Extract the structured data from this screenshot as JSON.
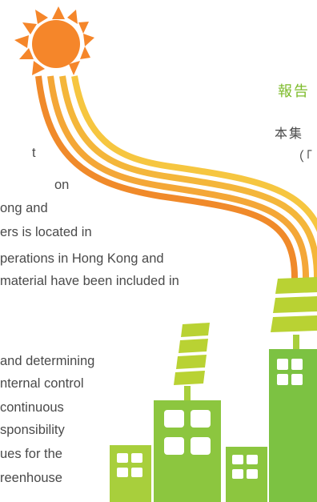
{
  "english_text": {
    "lines": [
      "t",
      "on",
      "ong and",
      "ers is located in",
      "perations in Hong Kong and",
      "material have been included in",
      "and determining",
      "nternal control",
      "continuous",
      "sponsibility",
      "ues for the",
      "reenhouse"
    ]
  },
  "chinese_text": {
    "title": "報告",
    "line1": "本集",
    "line2": "（「"
  },
  "colors": {
    "sun": "#f5862a",
    "sun_ray": "#f5862a",
    "stripe_orange": "#f08a2a",
    "stripe_yellow": "#f4b63a",
    "green_light": "#a8cf3c",
    "green_mid": "#8cc63f",
    "green_dark": "#6db33f",
    "panel_yellow": "#b9d233",
    "title_green": "#7dbb2a"
  }
}
